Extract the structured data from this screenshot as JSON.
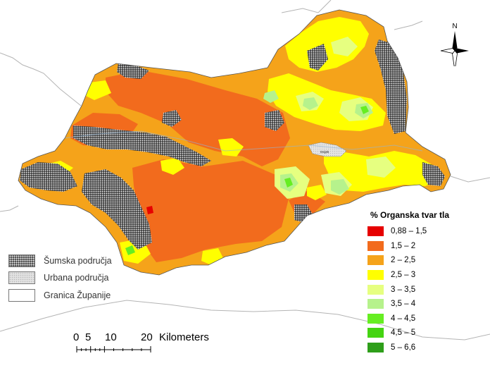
{
  "legend": {
    "title": "% Organska tvar tla",
    "classes": [
      {
        "label": "0,88 – 1,5",
        "color": "#e60000"
      },
      {
        "label": "1,5 – 2",
        "color": "#f26b1d"
      },
      {
        "label": "2 – 2,5",
        "color": "#f5a31a"
      },
      {
        "label": "2,5 – 3",
        "color": "#ffff00"
      },
      {
        "label": "3 – 3,5",
        "color": "#e6ff80"
      },
      {
        "label": "3,5 – 4",
        "color": "#b6f28c"
      },
      {
        "label": "4 – 4,5",
        "color": "#66ee22"
      },
      {
        "label": "4,5 – 5",
        "color": "#44d411"
      },
      {
        "label": "5 – 6,6",
        "color": "#2e9e1a"
      }
    ]
  },
  "landcover_legend": {
    "forest": "Šumska područja",
    "urban": "Urbana područja",
    "border": "Granica Županije"
  },
  "scale": {
    "n0": "0",
    "n5": "5",
    "n10": "10",
    "n20": "20",
    "unit": "Kilometers"
  },
  "north_label": "N",
  "city_label": "Osijek"
}
